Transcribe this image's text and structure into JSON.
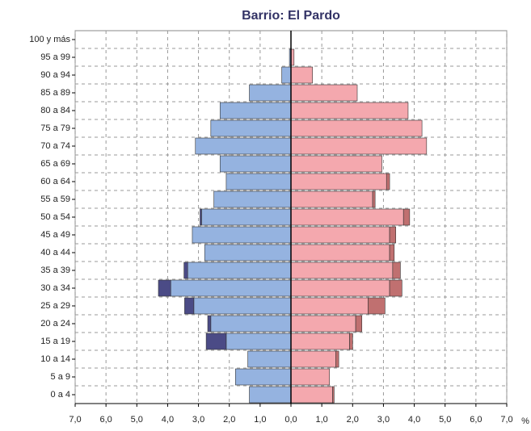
{
  "chart_data": {
    "type": "pyramid",
    "title": "Barrio: El Pardo",
    "categories": [
      "100 y más",
      "95 a 99",
      "90 a 94",
      "85 a 89",
      "80 a 84",
      "75 a 79",
      "70 a 74",
      "65 a 69",
      "60 a 64",
      "55 a 59",
      "50 a 54",
      "45 a 49",
      "40 a 44",
      "35 a 39",
      "30 a 34",
      "25 a 29",
      "20 a 24",
      "15 a 19",
      "10 a 14",
      "5 a 9",
      "0 a 4"
    ],
    "series": [
      {
        "color": "#95b3e0",
        "values": [
          0,
          0.05,
          0.3,
          1.35,
          2.3,
          2.6,
          3.1,
          2.3,
          2.1,
          2.5,
          2.9,
          3.2,
          2.8,
          3.35,
          3.9,
          3.15,
          2.6,
          2.1,
          1.4,
          1.8,
          1.35
        ]
      },
      {
        "color": "#4b4b86",
        "values": [
          0,
          0,
          0,
          0,
          0,
          0,
          0,
          0,
          0,
          0,
          0.05,
          0,
          0,
          0.12,
          0.4,
          0.3,
          0.1,
          0.65,
          0,
          0,
          0
        ]
      },
      {
        "color": "#f4a8ae",
        "values": [
          0,
          0.1,
          0.7,
          2.15,
          3.8,
          4.25,
          4.4,
          2.95,
          3.1,
          2.65,
          3.65,
          3.2,
          3.2,
          3.3,
          3.2,
          2.5,
          2.1,
          1.9,
          1.45,
          1.25,
          1.35
        ]
      },
      {
        "color": "#c07070",
        "values": [
          0,
          0,
          0,
          0,
          0,
          0,
          0,
          0,
          0.1,
          0.08,
          0.2,
          0.2,
          0.15,
          0.25,
          0.4,
          0.55,
          0.2,
          0.1,
          0.1,
          0,
          0.05
        ]
      }
    ],
    "xlim": [
      -7,
      7
    ],
    "xticks": [
      {
        "value": -7,
        "label": "7,0"
      },
      {
        "value": -6,
        "label": "6,0"
      },
      {
        "value": -5,
        "label": "5,0"
      },
      {
        "value": -4,
        "label": "4,0"
      },
      {
        "value": -3,
        "label": "3,0"
      },
      {
        "value": -2,
        "label": "2,0"
      },
      {
        "value": -1,
        "label": "1,0"
      },
      {
        "value": 0,
        "label": "0,0"
      },
      {
        "value": 1,
        "label": "1,0"
      },
      {
        "value": 2,
        "label": "2,0"
      },
      {
        "value": 3,
        "label": "3,0"
      },
      {
        "value": 4,
        "label": "4,0"
      },
      {
        "value": 5,
        "label": "5,0"
      },
      {
        "value": 6,
        "label": "6,0"
      },
      {
        "value": 7,
        "label": "7,0"
      }
    ],
    "xlabel": "%",
    "grid": true
  }
}
